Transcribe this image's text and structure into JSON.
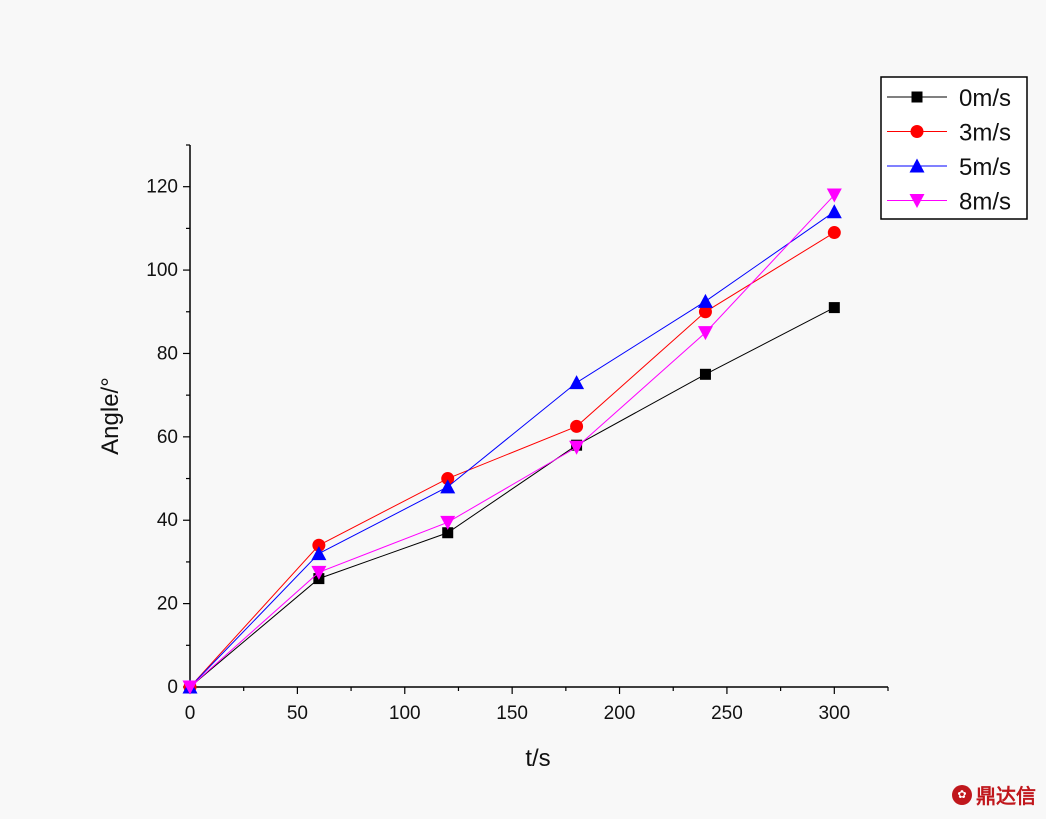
{
  "chart_data": {
    "type": "line",
    "title": "",
    "xlabel": "t/s",
    "ylabel": "Angle/°",
    "xlim": [
      0,
      325
    ],
    "ylim": [
      0,
      130
    ],
    "xticks": [
      0,
      50,
      100,
      150,
      200,
      250,
      300
    ],
    "yticks": [
      0,
      20,
      40,
      60,
      80,
      100,
      120
    ],
    "x": [
      0,
      60,
      120,
      180,
      240,
      300
    ],
    "legend_position": "top-right",
    "grid": false,
    "series": [
      {
        "name": "0m/s",
        "marker": "square",
        "color": "#000000",
        "values": [
          0,
          26,
          37,
          58,
          75,
          91
        ]
      },
      {
        "name": "3m/s",
        "marker": "circle",
        "color": "#ff0000",
        "values": [
          0,
          34,
          50,
          62.5,
          90,
          109
        ]
      },
      {
        "name": "5m/s",
        "marker": "triangle-up",
        "color": "#0000ff",
        "values": [
          0,
          32,
          48,
          73,
          92.5,
          114
        ]
      },
      {
        "name": "8m/s",
        "marker": "triangle-down",
        "color": "#ff00ff",
        "values": [
          0,
          27.5,
          39.5,
          57.5,
          85,
          118
        ]
      }
    ]
  },
  "watermark": {
    "text": "鼎达信",
    "icon": "logo-icon"
  }
}
